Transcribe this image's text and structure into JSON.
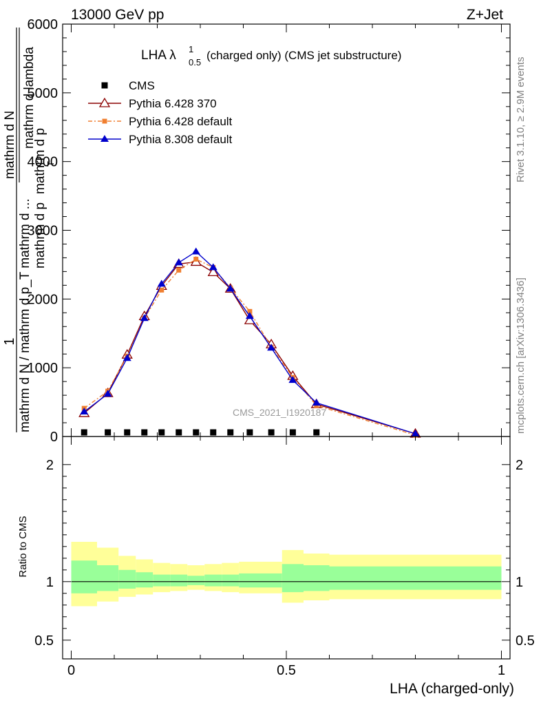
{
  "header": {
    "left": "13000 GeV pp",
    "right": "Z+Jet"
  },
  "plot_title": {
    "main": "LHA λ",
    "sup": "1",
    "sub": "0.5",
    "rest": "(charged only) (CMS jet substructure)"
  },
  "watermark": "CMS_2021_I1920187",
  "side_text": {
    "rivet": "Rivet 3.1.10, ≥ 2.9M events",
    "mcplots": "mcplots.cern.ch [arXiv:1306.3436]"
  },
  "ylabel_main": {
    "numerator": "1",
    "denominator": "mathrm d N / mathrm d p_T mathrm d ...",
    "line1": "mathrm d",
    "n_text": "N",
    "line2": "mathrm d p",
    "t_sub": "T",
    "line3": "mathrm d lambda",
    "extra": "mathrm d p"
  },
  "chart_data": [
    {
      "type": "line",
      "panel": "main",
      "title": "LHA λ^1_0.5 (charged only) (CMS jet substructure)",
      "xlabel": "LHA (charged-only)",
      "ylabel": "1/mathrm d N / mathrm d p_T mathrm d ... · mathrm d^2 N / mathrm d p_T mathrm d lambda",
      "xlim": [
        -0.02,
        1.02
      ],
      "ylim": [
        0,
        6000
      ],
      "yticks": [
        0,
        1000,
        2000,
        3000,
        4000,
        5000,
        6000
      ],
      "ytick_labels": [
        "0",
        "1000",
        "2000",
        "3000",
        "4000",
        "5000",
        "6000"
      ],
      "legend_position": "top-left",
      "series": [
        {
          "name": "CMS",
          "color": "#000000",
          "marker": "square",
          "x": [
            0.03,
            0.085,
            0.13,
            0.17,
            0.21,
            0.25,
            0.29,
            0.33,
            0.37,
            0.415,
            0.465,
            0.515,
            0.57
          ],
          "values": [
            20,
            20,
            20,
            20,
            20,
            20,
            20,
            20,
            20,
            20,
            20,
            20,
            20
          ]
        },
        {
          "name": "Pythia 6.428 370",
          "color": "#8b0000",
          "marker": "triangle-open",
          "x": [
            0.03,
            0.085,
            0.13,
            0.17,
            0.21,
            0.25,
            0.29,
            0.33,
            0.37,
            0.415,
            0.465,
            0.515,
            0.57,
            0.8
          ],
          "values": [
            340,
            630,
            1190,
            1750,
            2190,
            2510,
            2540,
            2390,
            2150,
            1690,
            1340,
            880,
            470,
            40
          ]
        },
        {
          "name": "Pythia 6.428 default",
          "color": "#f07f30",
          "marker": "square-filled",
          "x": [
            0.03,
            0.085,
            0.13,
            0.17,
            0.21,
            0.25,
            0.29,
            0.33,
            0.37,
            0.415,
            0.465,
            0.515,
            0.57,
            0.8
          ],
          "values": [
            410,
            660,
            1170,
            1720,
            2130,
            2420,
            2580,
            2460,
            2160,
            1820,
            1300,
            860,
            450,
            20
          ]
        },
        {
          "name": "Pythia 8.308 default",
          "color": "#0000cc",
          "marker": "triangle-filled",
          "x": [
            0.03,
            0.085,
            0.13,
            0.17,
            0.21,
            0.25,
            0.29,
            0.33,
            0.37,
            0.415,
            0.465,
            0.515,
            0.57,
            0.8
          ],
          "values": [
            360,
            620,
            1140,
            1720,
            2220,
            2530,
            2690,
            2460,
            2150,
            1750,
            1290,
            820,
            490,
            40
          ]
        }
      ]
    },
    {
      "type": "area",
      "panel": "ratio",
      "xlabel": "LHA (charged-only)",
      "ylabel": "Ratio to CMS",
      "xlim": [
        -0.02,
        1.02
      ],
      "ylim": [
        0.34,
        2.24
      ],
      "xticks": [
        0,
        0.5,
        1
      ],
      "xtick_labels": [
        "0",
        "0.5",
        "1"
      ],
      "yticks": [
        0.5,
        1,
        2
      ],
      "ytick_labels": [
        "0.5",
        "1",
        "2"
      ],
      "reference_line": 1,
      "bins": [
        {
          "lo": 0.0,
          "hi": 0.06,
          "band_yellow": [
            0.79,
            1.34
          ],
          "band_green": [
            0.9,
            1.18
          ]
        },
        {
          "lo": 0.06,
          "hi": 0.11,
          "band_yellow": [
            0.83,
            1.29
          ],
          "band_green": [
            0.92,
            1.14
          ]
        },
        {
          "lo": 0.11,
          "hi": 0.15,
          "band_yellow": [
            0.87,
            1.22
          ],
          "band_green": [
            0.94,
            1.1
          ]
        },
        {
          "lo": 0.15,
          "hi": 0.19,
          "band_yellow": [
            0.89,
            1.19
          ],
          "band_green": [
            0.95,
            1.08
          ]
        },
        {
          "lo": 0.19,
          "hi": 0.23,
          "band_yellow": [
            0.91,
            1.16
          ],
          "band_green": [
            0.96,
            1.06
          ]
        },
        {
          "lo": 0.23,
          "hi": 0.27,
          "band_yellow": [
            0.92,
            1.15
          ],
          "band_green": [
            0.96,
            1.06
          ]
        },
        {
          "lo": 0.27,
          "hi": 0.31,
          "band_yellow": [
            0.93,
            1.14
          ],
          "band_green": [
            0.97,
            1.05
          ]
        },
        {
          "lo": 0.31,
          "hi": 0.35,
          "band_yellow": [
            0.92,
            1.15
          ],
          "band_green": [
            0.96,
            1.06
          ]
        },
        {
          "lo": 0.35,
          "hi": 0.39,
          "band_yellow": [
            0.91,
            1.16
          ],
          "band_green": [
            0.96,
            1.06
          ]
        },
        {
          "lo": 0.39,
          "hi": 0.49,
          "band_yellow": [
            0.9,
            1.17
          ],
          "band_green": [
            0.95,
            1.07
          ]
        },
        {
          "lo": 0.49,
          "hi": 0.54,
          "band_yellow": [
            0.82,
            1.27
          ],
          "band_green": [
            0.91,
            1.15
          ]
        },
        {
          "lo": 0.54,
          "hi": 0.6,
          "band_yellow": [
            0.84,
            1.24
          ],
          "band_green": [
            0.92,
            1.14
          ]
        },
        {
          "lo": 0.6,
          "hi": 1.0,
          "band_yellow": [
            0.85,
            1.23
          ],
          "band_green": [
            0.93,
            1.13
          ]
        }
      ],
      "colors": {
        "yellow": "#ffff99",
        "green": "#99ff99"
      }
    }
  ]
}
